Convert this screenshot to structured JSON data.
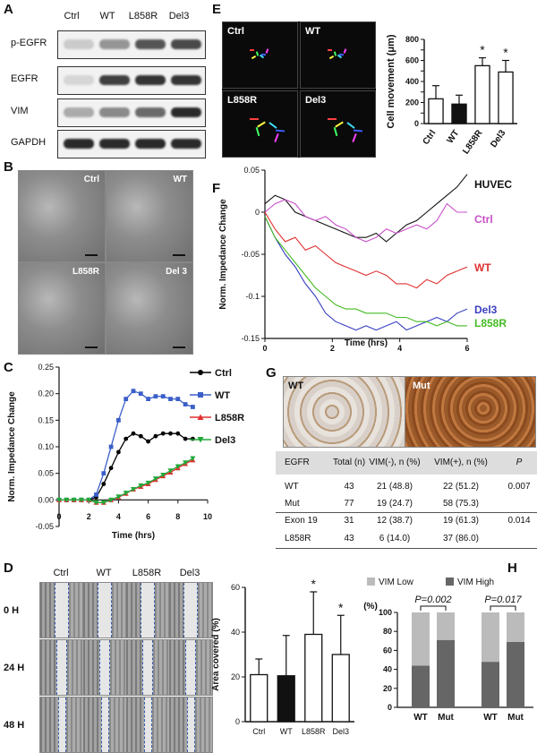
{
  "panels": {
    "A": {
      "label": "A",
      "lanes": [
        "Ctrl",
        "WT",
        "L858R",
        "Del3"
      ],
      "rows": [
        "p-EGFR",
        "EGFR",
        "VIM",
        "GAPDH"
      ],
      "band_intensity": [
        [
          0.15,
          0.4,
          0.7,
          0.75
        ],
        [
          0.1,
          0.8,
          0.85,
          0.85
        ],
        [
          0.3,
          0.45,
          0.6,
          0.9
        ],
        [
          0.9,
          0.9,
          0.9,
          0.9
        ]
      ]
    },
    "B": {
      "label": "B",
      "tiles": [
        "Ctrl",
        "WT",
        "L858R",
        "Del 3"
      ]
    },
    "C": {
      "label": "C",
      "chart_data": {
        "type": "line",
        "ylabel": "Norm. Impedance Change",
        "xlabel": "Time (hrs)",
        "xlim": [
          0,
          10
        ],
        "ylim": [
          -0.05,
          0.25
        ],
        "xticks": [
          "0",
          "2",
          "4",
          "6",
          "8",
          "10"
        ],
        "yticks": [
          "-0.05",
          "0.00",
          "0.05",
          "0.10",
          "0.15",
          "0.20",
          "0.25"
        ],
        "series": [
          {
            "name": "Ctrl",
            "color": "#000000",
            "marker": "circle",
            "x": [
              0,
              0.5,
              1,
              1.5,
              2,
              2.5,
              3,
              3.5,
              4,
              4.5,
              5,
              5.5,
              6,
              6.5,
              7,
              7.5,
              8,
              8.5,
              9
            ],
            "y": [
              0,
              0,
              0,
              0,
              0,
              0.005,
              0.03,
              0.06,
              0.09,
              0.115,
              0.125,
              0.12,
              0.11,
              0.12,
              0.125,
              0.125,
              0.125,
              0.115,
              0.115
            ]
          },
          {
            "name": "WT",
            "color": "#3b5fc9",
            "marker": "square",
            "x": [
              0,
              0.5,
              1,
              1.5,
              2,
              2.5,
              3,
              3.5,
              4,
              4.5,
              5,
              5.5,
              6,
              6.5,
              7,
              7.5,
              8,
              8.5,
              9
            ],
            "y": [
              0,
              0,
              0,
              0,
              0,
              0.01,
              0.05,
              0.1,
              0.15,
              0.19,
              0.205,
              0.2,
              0.19,
              0.195,
              0.195,
              0.19,
              0.19,
              0.18,
              0.175
            ]
          },
          {
            "name": "L858R",
            "color": "#e03030",
            "marker": "triangle-up",
            "x": [
              0,
              0.5,
              1,
              1.5,
              2,
              2.5,
              3,
              3.5,
              4,
              4.5,
              5,
              5.5,
              6,
              6.5,
              7,
              7.5,
              8,
              8.5,
              9
            ],
            "y": [
              0,
              0,
              0,
              0,
              0,
              -0.005,
              -0.005,
              0,
              0.005,
              0.012,
              0.02,
              0.025,
              0.03,
              0.038,
              0.045,
              0.052,
              0.06,
              0.068,
              0.075
            ]
          },
          {
            "name": "Del3",
            "color": "#22a83a",
            "marker": "triangle-down",
            "x": [
              0,
              0.5,
              1,
              1.5,
              2,
              2.5,
              3,
              3.5,
              4,
              4.5,
              5,
              5.5,
              6,
              6.5,
              7,
              7.5,
              8,
              8.5,
              9
            ],
            "y": [
              0,
              0,
              0,
              0,
              0,
              -0.005,
              -0.005,
              0,
              0.006,
              0.013,
              0.02,
              0.027,
              0.032,
              0.04,
              0.047,
              0.055,
              0.063,
              0.07,
              0.078
            ]
          }
        ]
      }
    },
    "D": {
      "label": "D",
      "columns": [
        "Ctrl",
        "WT",
        "L858R",
        "Del3"
      ],
      "rows": [
        "0 H",
        "24 H",
        "48 H"
      ],
      "chart_data": {
        "type": "bar",
        "categories": [
          "Ctrl",
          "WT",
          "L858R",
          "Del3"
        ],
        "values": [
          21,
          20.5,
          39,
          30
        ],
        "errors": [
          7,
          18,
          19,
          17.5
        ],
        "fills": [
          "#ffffff",
          "#111111",
          "#ffffff",
          "#ffffff"
        ],
        "ylabel": "Area covered (%)",
        "ylim": [
          0,
          60
        ],
        "yticks": [
          "0",
          "20",
          "40",
          "60"
        ],
        "significance": [
          "",
          "",
          "*",
          "*"
        ]
      }
    },
    "E": {
      "label": "E",
      "tiles": [
        "Ctrl",
        "WT",
        "L858R",
        "Del3"
      ],
      "chart_data": {
        "type": "bar",
        "categories": [
          "Ctrl",
          "WT",
          "L858R",
          "Del3"
        ],
        "values": [
          235,
          185,
          550,
          490
        ],
        "errors": [
          125,
          85,
          75,
          110
        ],
        "fills": [
          "#ffffff",
          "#111111",
          "#ffffff",
          "#ffffff"
        ],
        "ylabel": "Cell movement (μm)",
        "ylim": [
          0,
          800
        ],
        "yticks": [
          "0",
          "100",
          "200",
          "300",
          "400",
          "500",
          "600",
          "700",
          "800"
        ],
        "significance": [
          "",
          "",
          "*",
          "*"
        ]
      }
    },
    "F": {
      "label": "F",
      "chart_data": {
        "type": "line",
        "ylabel": "Norm. Impedance Change",
        "xlabel": "Time (hrs)",
        "xlim": [
          0,
          6
        ],
        "ylim": [
          -0.15,
          0.05
        ],
        "xticks": [
          "0",
          "2",
          "4",
          "6"
        ],
        "yticks": [
          "-0.15",
          "-0.1",
          "-0.05",
          "0",
          "0.05"
        ],
        "series": [
          {
            "name": "HUVEC",
            "color": "#111111",
            "x": [
              0,
              0.3,
              0.6,
              0.9,
              1.2,
              1.5,
              1.8,
              2.1,
              2.4,
              2.7,
              3,
              3.3,
              3.6,
              3.9,
              4.2,
              4.5,
              4.8,
              5.1,
              5.4,
              5.7,
              6
            ],
            "y": [
              0.01,
              0.02,
              0.015,
              0.0,
              -0.005,
              -0.01,
              -0.015,
              -0.02,
              -0.025,
              -0.03,
              -0.03,
              -0.025,
              -0.035,
              -0.025,
              -0.015,
              -0.01,
              0.0,
              0.01,
              0.02,
              0.03,
              0.045
            ]
          },
          {
            "name": "Ctrl",
            "color": "#c94fc9",
            "x": [
              0,
              0.3,
              0.6,
              0.9,
              1.2,
              1.5,
              1.8,
              2.1,
              2.4,
              2.7,
              3,
              3.3,
              3.6,
              3.9,
              4.2,
              4.5,
              4.8,
              5.1,
              5.4,
              5.7,
              6
            ],
            "y": [
              0.0,
              0.01,
              0.015,
              0.01,
              -0.005,
              -0.01,
              -0.005,
              -0.015,
              -0.02,
              -0.03,
              -0.035,
              -0.03,
              -0.02,
              -0.025,
              -0.02,
              -0.015,
              -0.02,
              -0.01,
              0.01,
              0.0,
              0.0
            ]
          },
          {
            "name": "WT",
            "color": "#e03030",
            "x": [
              0,
              0.3,
              0.6,
              0.9,
              1.2,
              1.5,
              1.8,
              2.1,
              2.4,
              2.7,
              3,
              3.3,
              3.6,
              3.9,
              4.2,
              4.5,
              4.8,
              5.1,
              5.4,
              5.7,
              6
            ],
            "y": [
              0.0,
              -0.02,
              -0.035,
              -0.03,
              -0.045,
              -0.04,
              -0.05,
              -0.06,
              -0.065,
              -0.07,
              -0.075,
              -0.07,
              -0.075,
              -0.085,
              -0.085,
              -0.09,
              -0.08,
              -0.085,
              -0.075,
              -0.07,
              -0.065
            ]
          },
          {
            "name": "Del3",
            "color": "#3b3fc0",
            "x": [
              0,
              0.3,
              0.6,
              0.9,
              1.2,
              1.5,
              1.8,
              2.1,
              2.4,
              2.7,
              3,
              3.3,
              3.6,
              3.9,
              4.2,
              4.5,
              4.8,
              5.1,
              5.4,
              5.7,
              6
            ],
            "y": [
              -0.005,
              -0.03,
              -0.05,
              -0.065,
              -0.085,
              -0.1,
              -0.12,
              -0.13,
              -0.135,
              -0.14,
              -0.135,
              -0.14,
              -0.135,
              -0.13,
              -0.14,
              -0.135,
              -0.13,
              -0.125,
              -0.13,
              -0.12,
              -0.115
            ]
          },
          {
            "name": "L858R",
            "color": "#44bb22",
            "x": [
              0,
              0.3,
              0.6,
              0.9,
              1.2,
              1.5,
              1.8,
              2.1,
              2.4,
              2.7,
              3,
              3.3,
              3.6,
              3.9,
              4.2,
              4.5,
              4.8,
              5.1,
              5.4,
              5.7,
              6
            ],
            "y": [
              -0.005,
              -0.03,
              -0.045,
              -0.06,
              -0.075,
              -0.09,
              -0.1,
              -0.11,
              -0.115,
              -0.115,
              -0.12,
              -0.12,
              -0.12,
              -0.125,
              -0.125,
              -0.13,
              -0.13,
              -0.135,
              -0.13,
              -0.135,
              -0.135
            ]
          }
        ]
      }
    },
    "G": {
      "label": "G",
      "images": [
        "WT",
        "Mut"
      ],
      "table": {
        "headers": [
          "EGFR",
          "Total (n)",
          "VIM(-), n (%)",
          "VIM(+), n (%)",
          "P"
        ],
        "rows": [
          [
            "WT",
            "43",
            "21 (48.8)",
            "22 (51.2)",
            "0.007"
          ],
          [
            "Mut",
            "77",
            "19 (24.7)",
            "58 (75.3)",
            ""
          ],
          [
            "Exon 19",
            "31",
            "12 (38.7)",
            "19 (61.3)",
            "0.014"
          ],
          [
            "L858R",
            "43",
            "6 (14.0)",
            "37 (86.0)",
            ""
          ]
        ]
      }
    },
    "H": {
      "label": "H",
      "chart_data": {
        "type": "bar",
        "stacked": true,
        "groups": [
          {
            "categories": [
              "WT",
              "Mut"
            ],
            "p": "P=0.002"
          },
          {
            "categories": [
              "WT",
              "Mut"
            ],
            "p": "P=0.017"
          }
        ],
        "series": [
          {
            "name": "VIM High",
            "color": "#666666",
            "values": [
              44,
              71,
              48,
              69
            ]
          },
          {
            "name": "VIM Low",
            "color": "#bbbbbb",
            "values": [
              56,
              29,
              52,
              31
            ]
          }
        ],
        "ylabel": "(%)",
        "ylim": [
          0,
          100
        ],
        "yticks": [
          "0",
          "20",
          "40",
          "60",
          "80",
          "100"
        ]
      }
    }
  }
}
